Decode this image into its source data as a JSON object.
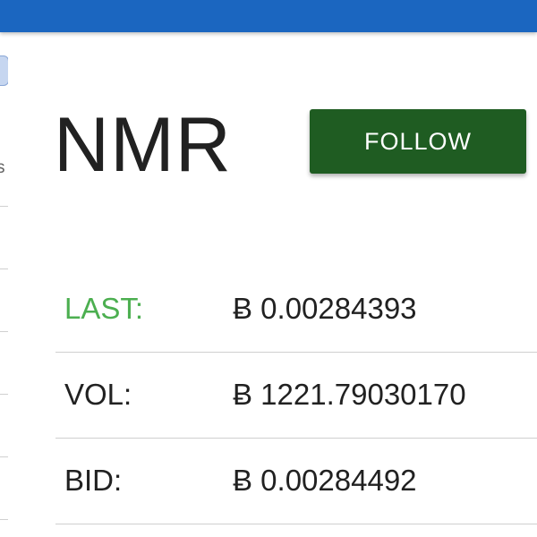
{
  "coin": {
    "symbol": "NMR",
    "follow_label": "FOLLOW"
  },
  "sidebar": {
    "partial_text": "s"
  },
  "stats": [
    {
      "label": "LAST:",
      "value": "Ƀ 0.00284393"
    },
    {
      "label": "VOL:",
      "value": "Ƀ 1221.79030170"
    },
    {
      "label": "BID:",
      "value": "Ƀ 0.00284492"
    }
  ],
  "colors": {
    "topbar": "#1b66c0",
    "follow_button": "#1f5c22",
    "last_label": "#4caf50"
  }
}
